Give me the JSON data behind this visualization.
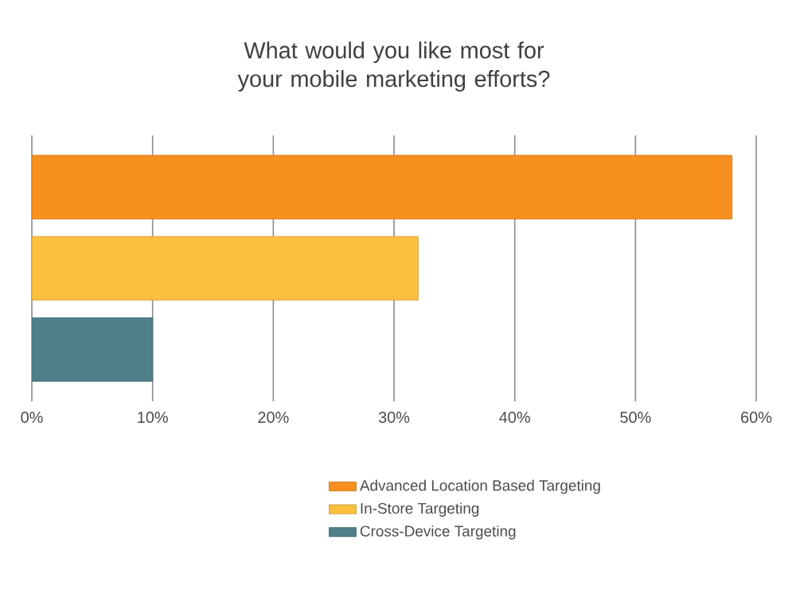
{
  "chart_data": {
    "type": "bar",
    "orientation": "horizontal",
    "title": "What would you like most for your mobile marketing efforts?",
    "categories": [
      null
    ],
    "series": [
      {
        "name": "Advanced Location Based Targeting",
        "color": "#f7901e",
        "values": [
          58
        ]
      },
      {
        "name": "In-Store Targeting",
        "color": "#fbc03f",
        "values": [
          32
        ]
      },
      {
        "name": "Cross-Device Targeting",
        "color": "#4e8089",
        "values": [
          10
        ]
      }
    ],
    "xlim": [
      0,
      60
    ],
    "xticks": [
      {
        "value": 0,
        "label": "0%"
      },
      {
        "value": 10,
        "label": "10%"
      },
      {
        "value": 20,
        "label": "20%"
      },
      {
        "value": 30,
        "label": "30%"
      },
      {
        "value": 40,
        "label": "40%"
      },
      {
        "value": 50,
        "label": "50%"
      },
      {
        "value": 60,
        "label": "60%"
      }
    ],
    "grid": "x",
    "legend": "bottom",
    "tick_labels": "x"
  }
}
